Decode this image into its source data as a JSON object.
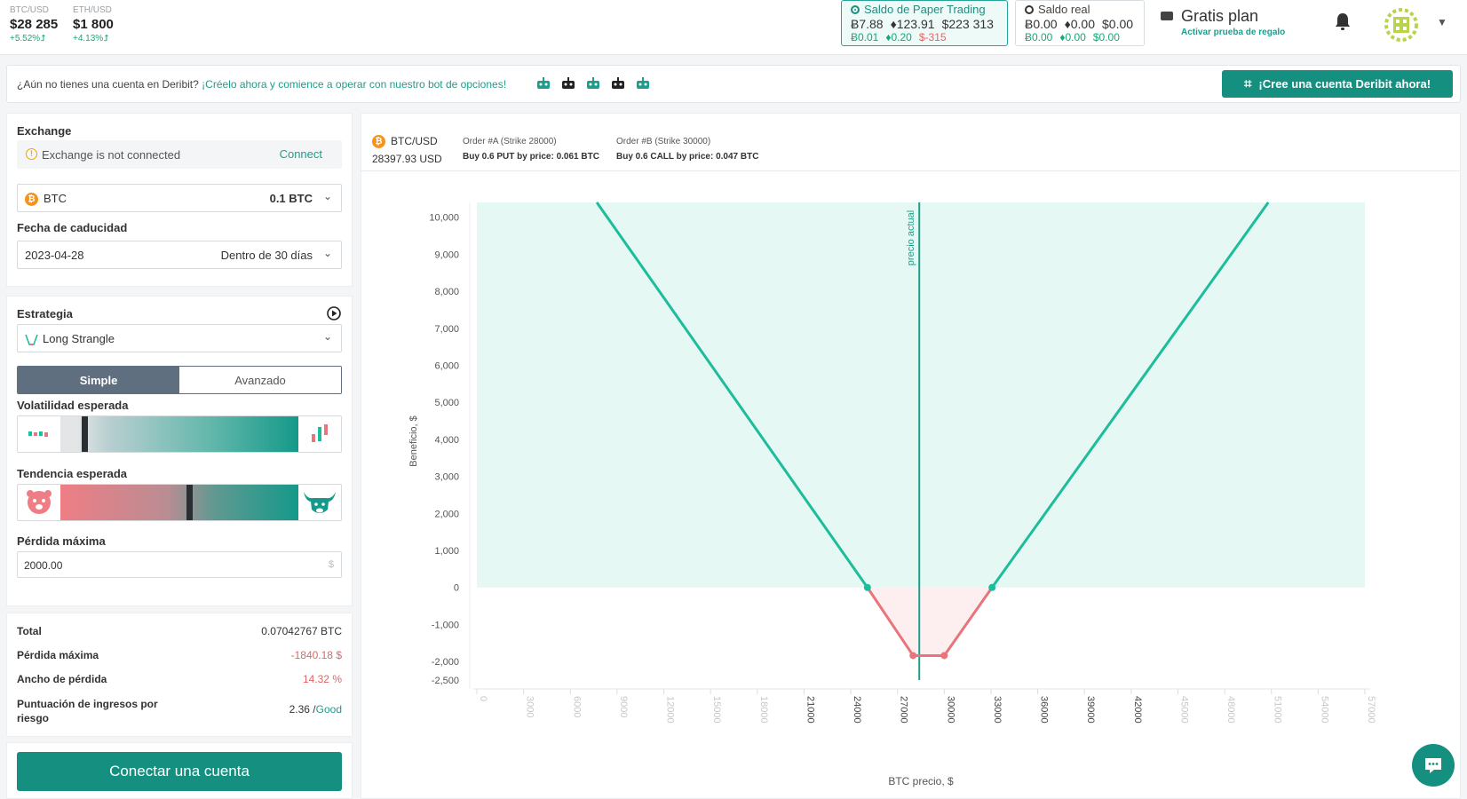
{
  "tickers": [
    {
      "pair": "BTC/USD",
      "price": "$28 285",
      "change": "+5.52%⮥"
    },
    {
      "pair": "ETH/USD",
      "price": "$1 800",
      "change": "+4.13%⮥"
    }
  ],
  "paper_balance": {
    "title": "Saldo de Paper Trading",
    "row1": [
      "Ƀ7.88",
      "♦123.91",
      "$223 313"
    ],
    "row2": [
      "Ƀ0.01",
      "♦0.20",
      "$-315"
    ]
  },
  "real_balance": {
    "title": "Saldo real",
    "row1": [
      "Ƀ0.00",
      "♦0.00",
      "$0.00"
    ],
    "row2": [
      "Ƀ0.00",
      "♦0.00",
      "$0.00"
    ]
  },
  "plan": {
    "title": "Gratis plan",
    "link": "Activar prueba de regalo"
  },
  "banner": {
    "question": "¿Aún no tienes una cuenta en Deribit?",
    "link": "¡Créelo ahora y comience a operar con nuestro bot de opciones!",
    "button": "¡Cree una cuenta Deribit ahora!"
  },
  "exchange": {
    "label": "Exchange",
    "status": "Exchange is not connected",
    "connect": "Connect",
    "asset": "BTC",
    "amount": "0.1 BTC"
  },
  "expiry": {
    "label": "Fecha de caducidad",
    "date": "2023-04-28",
    "relative": "Dentro de 30 días"
  },
  "strategy": {
    "label": "Estrategia",
    "value": "Long Strangle",
    "tabs": [
      "Simple",
      "Avanzado"
    ],
    "active_tab": "Simple",
    "volatility_label": "Volatilidad esperada",
    "volatility_level": 0.09,
    "trend_label": "Tendencia esperada",
    "trend_level": 0.53,
    "max_loss_label": "Pérdida máxima",
    "max_loss_value": "2000.00",
    "max_loss_unit": "$"
  },
  "summary": {
    "total_label": "Total",
    "total_value": "0.07042767 BTC",
    "loss_label": "Pérdida máxima",
    "loss_value": "-1840.18 $",
    "width_label": "Ancho de pérdida",
    "width_value": "14.32 %",
    "score_label": "Puntuación de ingresos por riesgo",
    "score_value": "2.36 /",
    "score_word": "Good"
  },
  "connect_button": "Conectar una cuenta",
  "chart_header": {
    "pair": "BTC/USD",
    "price": "28397.93 USD",
    "order_a_title": "Order #A (Strike 28000)",
    "order_a_desc": "Buy 0.6 PUT by price: 0.061 BTC",
    "order_b_title": "Order #B (Strike 30000)",
    "order_b_desc": "Buy 0.6 CALL by price: 0.047 BTC"
  },
  "chart_data": {
    "type": "line",
    "title": "",
    "xlabel": "BTC precio, $",
    "ylabel": "Beneficio, $",
    "current_price_label": "precio actual",
    "current_price": 28397.93,
    "xlim": [
      0,
      57000
    ],
    "ylim": [
      -2500,
      10400
    ],
    "x_ticks": [
      0,
      3000,
      6000,
      9000,
      12000,
      15000,
      18000,
      21000,
      24000,
      27000,
      30000,
      33000,
      36000,
      39000,
      42000,
      45000,
      48000,
      51000,
      54000,
      57000
    ],
    "y_ticks": [
      -2500,
      -2000,
      -1000,
      0,
      1000,
      2000,
      3000,
      4000,
      5000,
      6000,
      7000,
      8000,
      9000,
      10000
    ],
    "y_tick_labels": [
      "-2,500",
      "-2,000",
      "-1,000",
      "0",
      "1,000",
      "2,000",
      "3,000",
      "4,000",
      "5,000",
      "6,000",
      "7,000",
      "8,000",
      "9,000",
      "10,000"
    ],
    "series": [
      {
        "values": [
          [
            7700,
            10400
          ],
          [
            25070,
            0
          ],
          [
            28000,
            -1840
          ],
          [
            30000,
            -1840
          ],
          [
            33070,
            0
          ],
          [
            50800,
            10400
          ]
        ]
      }
    ],
    "breakeven": [
      25070,
      33070
    ],
    "colors": {
      "profit": "#1dbc9c",
      "loss": "#e8747c",
      "profit_fill": "#e6f8f3",
      "loss_fill": "#fdeff0",
      "current": "#1f9d8b"
    }
  }
}
